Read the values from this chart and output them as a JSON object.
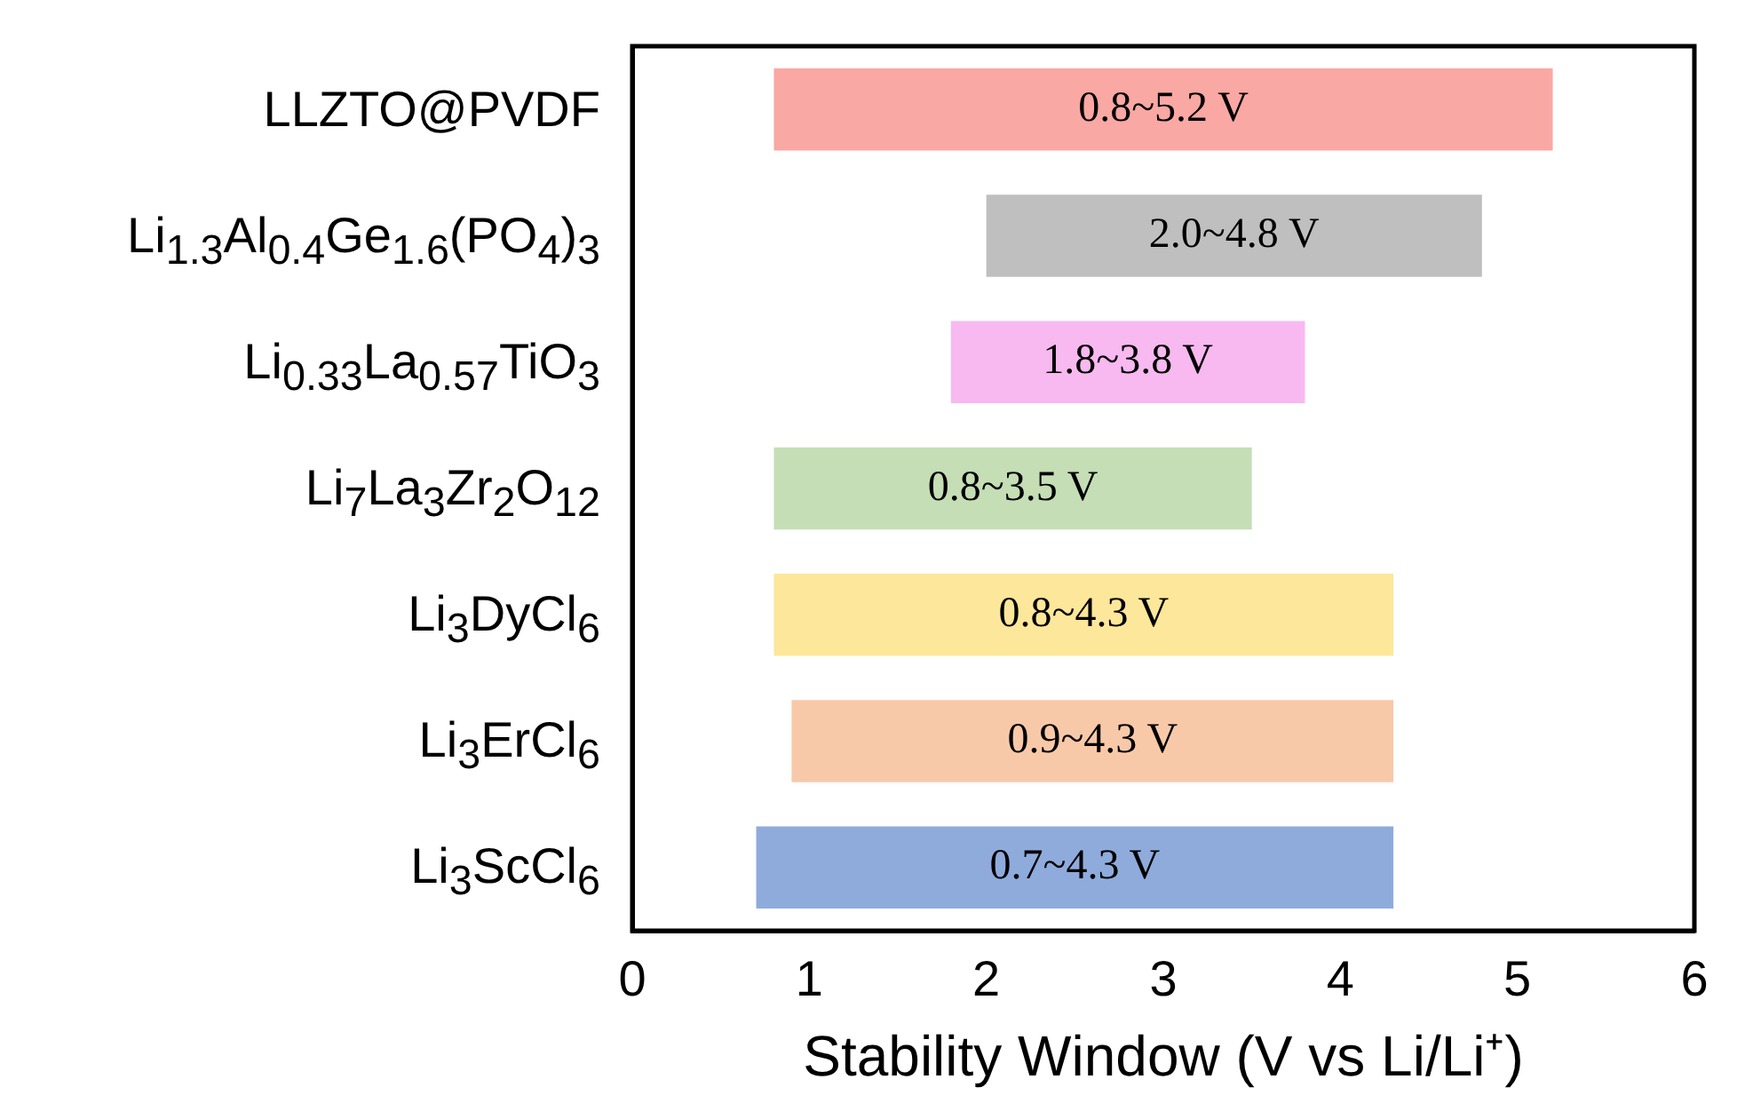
{
  "chart_data": {
    "type": "bar",
    "orientation": "horizontal",
    "xlabel": "Stability Window (V vs Li/Li⁺)",
    "categories": [
      "LLZTO@PVDF",
      "Li$_{1.3}$Al$_{0.4}$Ge$_{1.6}$(PO$_{4}$)$_{3}$",
      "Li$_{0.33}$La$_{0.57}$TiO$_{3}$",
      "Li$_{7}$La$_{3}$Zr$_{2}$O$_{12}$",
      "Li$_{3}$DyCl$_{6}$",
      "Li$_{3}$ErCl$_{6}$",
      "Li$_{3}$ScCl$_{6}$"
    ],
    "base": [
      0.8,
      2.0,
      1.8,
      0.8,
      0.8,
      0.9,
      0.7
    ],
    "values": [
      4.4,
      2.8,
      2.0,
      2.7,
      3.5,
      3.4,
      3.6
    ],
    "annotations": [
      "0.8~5.2 V",
      "2.0~4.8 V",
      "1.8~3.8 V",
      "0.8~3.5 V",
      "0.8~4.3 V",
      "0.9~4.3 V",
      "0.7~4.3 V"
    ],
    "colors": [
      "#f9a8a4",
      "#bfbfbf",
      "#f7b9f0",
      "#c5deb5",
      "#fde79a",
      "#f8c9a9",
      "#8fabdc"
    ],
    "xlim": [
      0,
      6
    ],
    "xticks": [
      0,
      1,
      2,
      3,
      4,
      5,
      6
    ],
    "grid": false,
    "legend": false
  }
}
